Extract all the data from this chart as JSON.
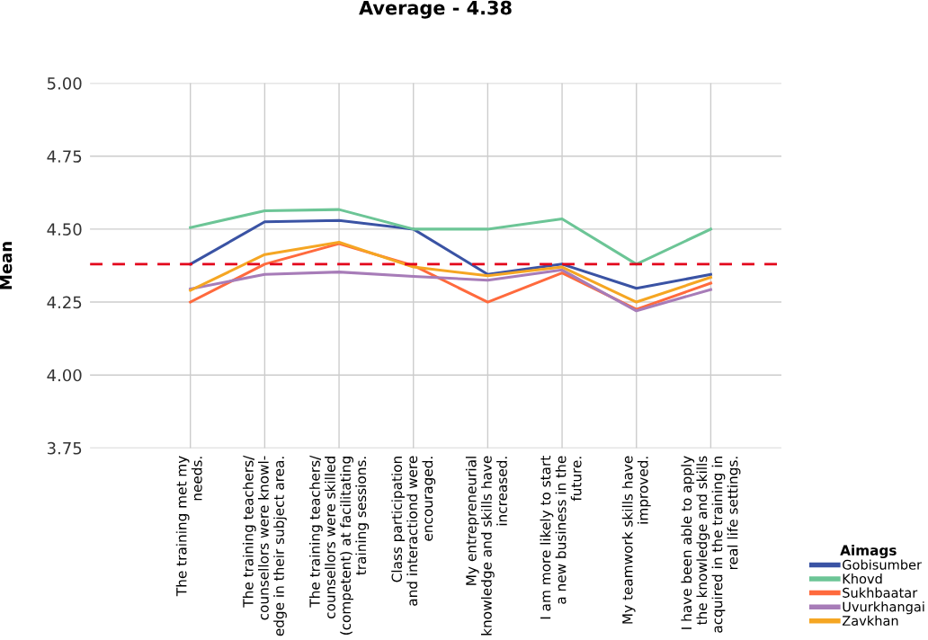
{
  "chart_data": {
    "type": "line",
    "title": "Average - 4.38",
    "ylabel": "Mean",
    "legend_title": "Aimags",
    "categories": [
      "The training met my\nneeds.",
      "The training teachers/\ncounsellors were knowl-\nedge in their subject area.",
      "The training teachers/\ncounsellors were skilled\n(competent) at facilitating\ntraining sessions.",
      "Class participation\nand interactiond were\nencouraged.",
      "My entrepreneurial\nknowledge and skills have\nincreased.",
      "I am more likely to start\na new business in the\nfuture.",
      "My teamwork skills have\nimproved.",
      "I have been able to apply\nthe knowledge and skills\nacquired in the training in\nreal life settings."
    ],
    "series": [
      {
        "name": "Gobisumber",
        "color": "#3a53a4",
        "values": [
          4.38,
          4.525,
          4.53,
          4.5,
          4.345,
          4.38,
          4.297,
          4.345
        ]
      },
      {
        "name": "Khovd",
        "color": "#6cc596",
        "values": [
          4.505,
          4.563,
          4.567,
          4.5,
          4.5,
          4.535,
          4.38,
          4.5
        ]
      },
      {
        "name": "Sukhbaatar",
        "color": "#ff6a3d",
        "values": [
          4.25,
          4.38,
          4.45,
          4.375,
          4.25,
          4.35,
          4.225,
          4.315
        ]
      },
      {
        "name": "Uvurkhangai",
        "color": "#a77cb8",
        "values": [
          4.295,
          4.345,
          4.353,
          4.338,
          4.325,
          4.36,
          4.22,
          4.293
        ]
      },
      {
        "name": "Zavkhan",
        "color": "#f5a623",
        "values": [
          4.29,
          4.413,
          4.455,
          4.37,
          4.34,
          4.37,
          4.25,
          4.335
        ]
      }
    ],
    "ylim": [
      3.75,
      5.0
    ],
    "yticks": [
      {
        "value": 3.75,
        "label": "3.75"
      },
      {
        "value": 4.0,
        "label": "4.00"
      },
      {
        "value": 4.25,
        "label": "4.25"
      },
      {
        "value": 4.5,
        "label": "4.50"
      },
      {
        "value": 4.75,
        "label": "4.75"
      },
      {
        "value": 5.0,
        "label": "5.00"
      }
    ],
    "ref_lines": [
      {
        "axis": "y",
        "value": 4.38,
        "color": "#e3001b",
        "line_style": "dashed"
      }
    ],
    "grid": true,
    "legend": "bottom right",
    "marker": "none",
    "line_style": "solid"
  }
}
